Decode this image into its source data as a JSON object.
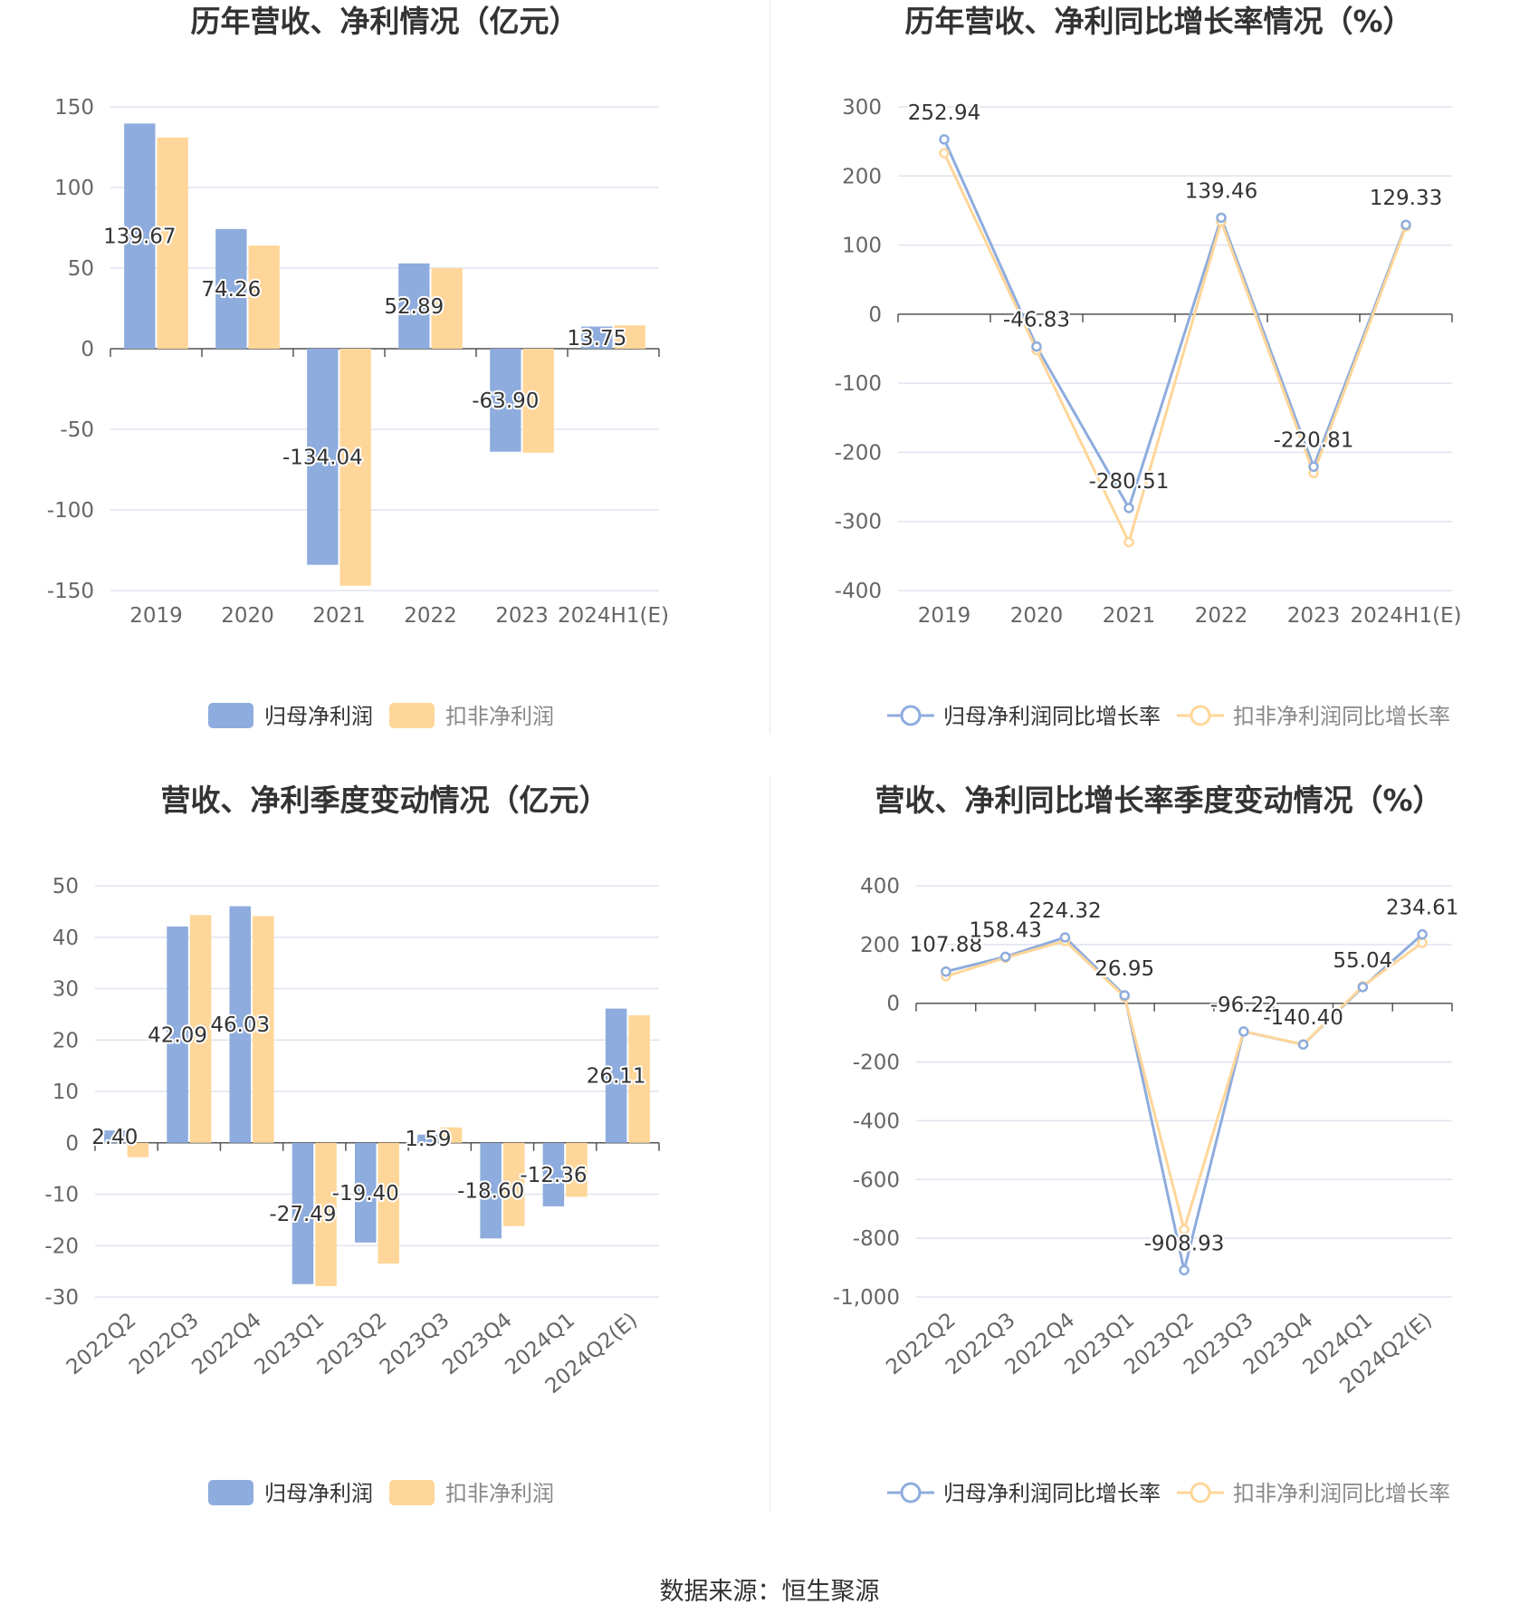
{
  "source": "数据来源：恒生聚源",
  "colors": {
    "blue": "#8eacdd",
    "orange": "#ffd699",
    "grid": "#e0e3ef",
    "axis": "#555555",
    "text": "#333333",
    "tick": "#666666"
  },
  "chart_data": [
    {
      "type": "bar",
      "title": "历年营收、净利情况（亿元）",
      "categories": [
        "2019",
        "2020",
        "2021",
        "2022",
        "2023",
        "2024H1(E)"
      ],
      "ylim": [
        -150,
        150
      ],
      "yticks": [
        "150",
        "100",
        "50",
        "0",
        "-50",
        "-100",
        "-150"
      ],
      "legend": "bottom",
      "series": [
        {
          "name": "归母净利润",
          "values": [
            139.67,
            74.26,
            -134.04,
            52.89,
            -63.9,
            13.75
          ],
          "labels": [
            "139.67",
            "74.26",
            "-134.04",
            "52.89",
            "-63.90",
            "13.75"
          ]
        },
        {
          "name": "扣非净利润",
          "values": [
            131.0,
            64.0,
            -147.0,
            50.0,
            -64.5,
            14.5
          ]
        }
      ]
    },
    {
      "type": "line",
      "title": "历年营收、净利同比增长率情况（%）",
      "categories": [
        "2019",
        "2020",
        "2021",
        "2022",
        "2023",
        "2024H1(E)"
      ],
      "ylim": [
        -400,
        300
      ],
      "yticks": [
        "300",
        "200",
        "100",
        "0",
        "-100",
        "-200",
        "-300",
        "-400"
      ],
      "legend": "bottom",
      "series": [
        {
          "name": "归母净利润同比增长率",
          "values": [
            252.94,
            -46.83,
            -280.51,
            139.46,
            -220.81,
            129.33
          ],
          "labels": [
            "252.94",
            "-46.83",
            "-280.51",
            "139.46",
            "-220.81",
            "129.33"
          ]
        },
        {
          "name": "扣非净利润同比增长率",
          "values": [
            233.0,
            -52.0,
            -330.0,
            134.0,
            -230.0,
            127.0
          ]
        }
      ]
    },
    {
      "type": "bar",
      "title": "营收、净利季度变动情况（亿元）",
      "categories": [
        "2022Q2",
        "2022Q3",
        "2022Q4",
        "2023Q1",
        "2023Q2",
        "2023Q3",
        "2023Q4",
        "2024Q1",
        "2024Q2(E)"
      ],
      "ylim": [
        -30,
        50
      ],
      "yticks": [
        "50",
        "40",
        "30",
        "20",
        "10",
        "0",
        "-10",
        "-20",
        "-30"
      ],
      "legend": "bottom",
      "series": [
        {
          "name": "归母净利润",
          "values": [
            2.4,
            42.09,
            46.03,
            -27.49,
            -19.4,
            1.59,
            -18.6,
            -12.36,
            26.11
          ],
          "labels": [
            "2.40",
            "42.09",
            "46.03",
            "-27.49",
            "-19.40",
            "1.59",
            "-18.60",
            "-12.36",
            "26.11"
          ]
        },
        {
          "name": "扣非净利润",
          "values": [
            -2.8,
            44.3,
            44.1,
            -27.9,
            -23.5,
            3.0,
            -16.2,
            -10.5,
            24.8
          ]
        }
      ]
    },
    {
      "type": "line",
      "title": "营收、净利同比增长率季度变动情况（%）",
      "categories": [
        "2022Q2",
        "2022Q3",
        "2022Q4",
        "2023Q1",
        "2023Q2",
        "2023Q3",
        "2023Q4",
        "2024Q1",
        "2024Q2(E)"
      ],
      "ylim": [
        -1000,
        400
      ],
      "yticks": [
        "400",
        "200",
        "0",
        "-200",
        "-400",
        "-600",
        "-800",
        "-1,000"
      ],
      "legend": "bottom",
      "series": [
        {
          "name": "归母净利润同比增长率",
          "values": [
            107.88,
            158.43,
            224.32,
            26.95,
            -908.93,
            -96.22,
            -140.4,
            55.04,
            234.61
          ],
          "labels": [
            "107.88",
            "158.43",
            "224.32",
            "26.95",
            "-908.93",
            "-96.22",
            "-140.40",
            "55.04",
            "234.61"
          ]
        },
        {
          "name": "扣非净利润同比增长率",
          "values": [
            92.0,
            155.0,
            212.0,
            22.0,
            -770.0,
            -96.0,
            -140.0,
            58.0,
            206.0
          ]
        }
      ]
    }
  ]
}
